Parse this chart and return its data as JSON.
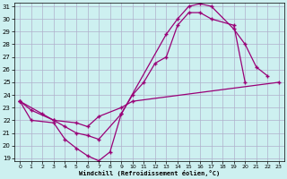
{
  "xlabel": "Windchill (Refroidissement éolien,°C)",
  "background_color": "#cdf0f0",
  "grid_color": "#b0b0cc",
  "line_color": "#990077",
  "line1_x": [
    0,
    1,
    3,
    4,
    5,
    6,
    7,
    8,
    9,
    13,
    14,
    15,
    16,
    17,
    19,
    20,
    21,
    22
  ],
  "line1_y": [
    23.5,
    22.0,
    21.8,
    20.5,
    19.8,
    19.2,
    18.8,
    19.5,
    22.5,
    28.8,
    30.0,
    31.0,
    31.2,
    31.0,
    29.2,
    28.0,
    26.2,
    25.5
  ],
  "line2_x": [
    0,
    1,
    3,
    4,
    5,
    6,
    7,
    9,
    10,
    11,
    12,
    13,
    14,
    15,
    16,
    17,
    19,
    20
  ],
  "line2_y": [
    23.5,
    22.8,
    22.0,
    21.5,
    21.0,
    20.8,
    20.5,
    22.5,
    24.0,
    25.0,
    26.5,
    27.0,
    29.5,
    30.5,
    30.5,
    30.0,
    29.5,
    25.0
  ],
  "line3_x": [
    0,
    2,
    3,
    5,
    6,
    7,
    9,
    10,
    23
  ],
  "line3_y": [
    23.5,
    22.5,
    22.0,
    21.8,
    21.5,
    22.3,
    23.0,
    23.5,
    25.0
  ],
  "ylim": [
    19,
    31
  ],
  "xlim": [
    0,
    23
  ],
  "yticks": [
    19,
    20,
    21,
    22,
    23,
    24,
    25,
    26,
    27,
    28,
    29,
    30,
    31
  ],
  "xticks": [
    0,
    1,
    2,
    3,
    4,
    5,
    6,
    7,
    8,
    9,
    10,
    11,
    12,
    13,
    14,
    15,
    16,
    17,
    18,
    19,
    20,
    21,
    22,
    23
  ]
}
